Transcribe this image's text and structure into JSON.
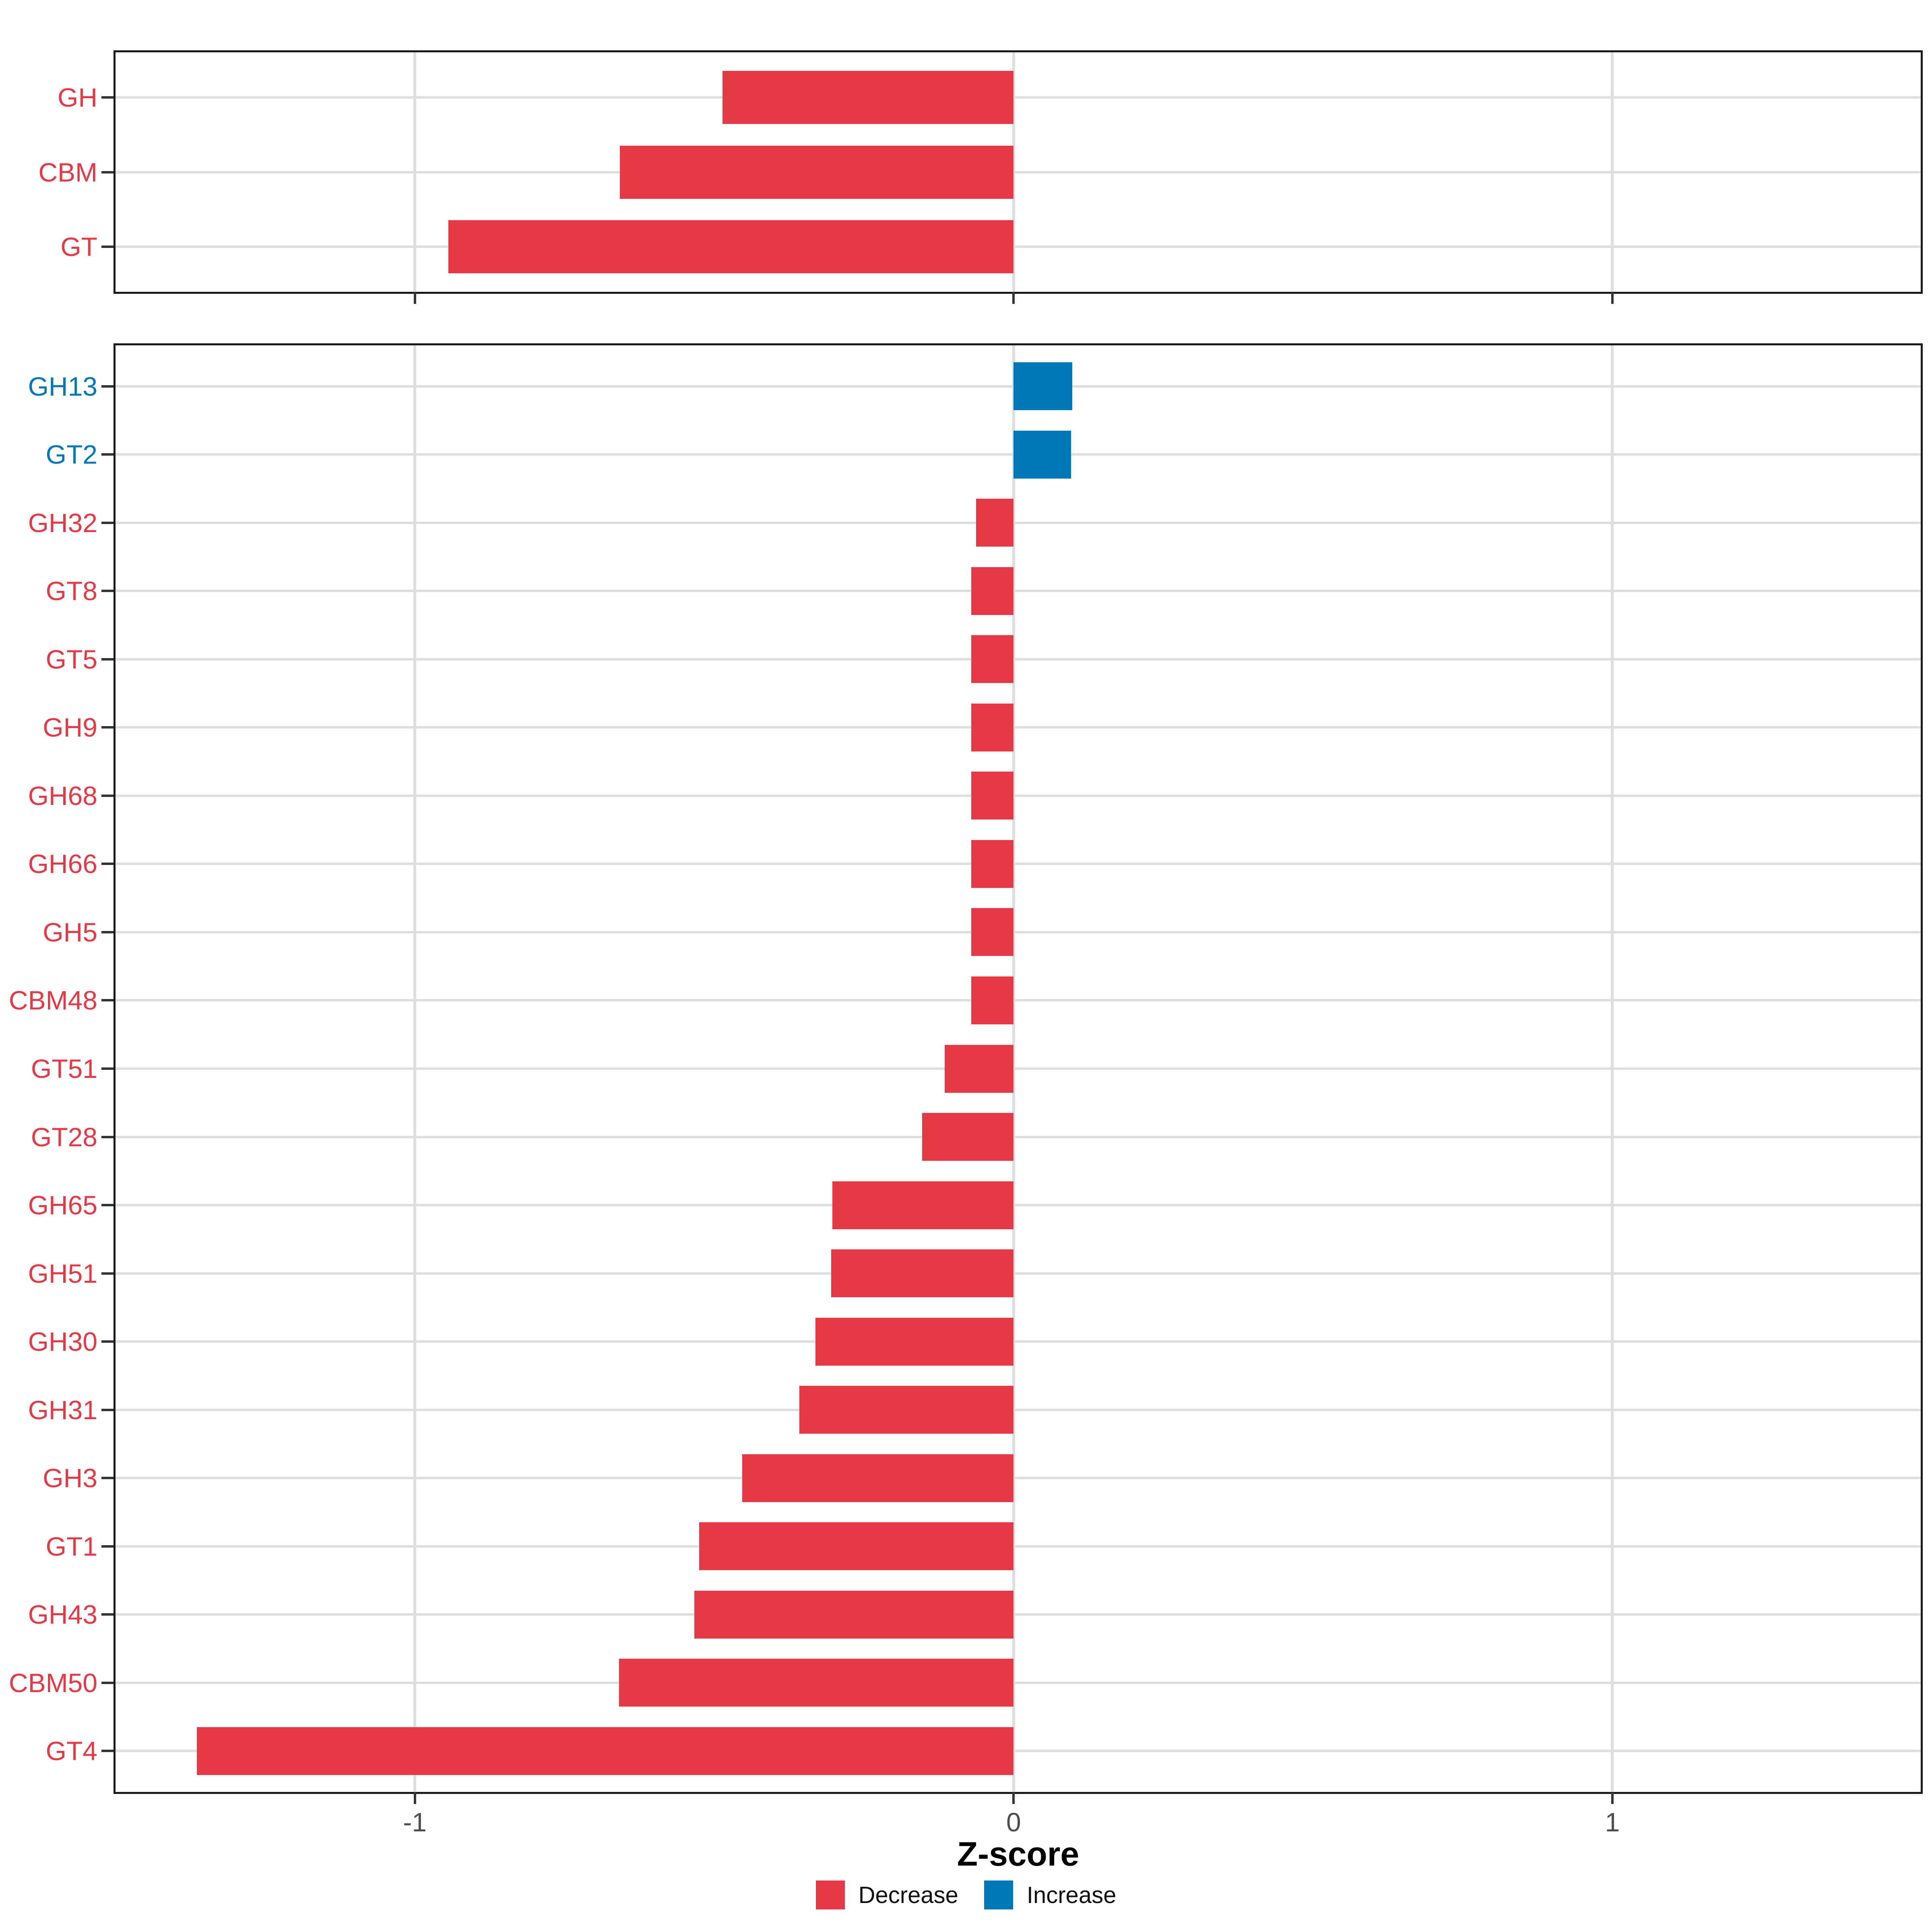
{
  "figure": {
    "xlabel": "Z-score",
    "background_color": "#FFFFFF",
    "axis": {
      "min": -1.5,
      "max": 1.515,
      "ticks": [
        -1,
        0,
        1
      ],
      "tick_labels": [
        "-1",
        "0",
        "1"
      ]
    },
    "colors": {
      "decrease": "#E63946",
      "increase": "#0077B6",
      "grid": "#DEDEDE",
      "panel_border": "#1A1A1A",
      "tick_mark": "#333333",
      "axis_text": "#4D4D4D"
    },
    "legend": [
      {
        "label": "Decrease",
        "color": "#E63946"
      },
      {
        "label": "Increase",
        "color": "#0077B6"
      }
    ]
  },
  "chart_data": [
    {
      "type": "bar",
      "orientation": "horizontal",
      "panel": "top",
      "title": "",
      "xlabel": "Z-score",
      "xlim": [
        -1.5,
        1.515
      ],
      "grid": "major-only",
      "categories": [
        "GH",
        "CBM",
        "GT"
      ],
      "values": [
        -0.486,
        -0.658,
        -0.944
      ],
      "directions": [
        "Decrease",
        "Decrease",
        "Decrease"
      ]
    },
    {
      "type": "bar",
      "orientation": "horizontal",
      "panel": "bottom",
      "title": "",
      "xlabel": "Z-score",
      "xlim": [
        -1.5,
        1.515
      ],
      "grid": "major-only",
      "categories": [
        "GH13",
        "GT2",
        "GH32",
        "GT8",
        "GT5",
        "GH9",
        "GH68",
        "GH66",
        "GH5",
        "CBM48",
        "GT51",
        "GT28",
        "GH65",
        "GH51",
        "GH30",
        "GH31",
        "GH3",
        "GT1",
        "GH43",
        "CBM50",
        "GT4"
      ],
      "values": [
        0.098,
        0.096,
        -0.063,
        -0.071,
        -0.071,
        -0.071,
        -0.071,
        -0.071,
        -0.071,
        -0.071,
        -0.115,
        -0.153,
        -0.303,
        -0.305,
        -0.331,
        -0.358,
        -0.453,
        -0.525,
        -0.533,
        -0.659,
        -1.364
      ],
      "directions": [
        "Increase",
        "Increase",
        "Decrease",
        "Decrease",
        "Decrease",
        "Decrease",
        "Decrease",
        "Decrease",
        "Decrease",
        "Decrease",
        "Decrease",
        "Decrease",
        "Decrease",
        "Decrease",
        "Decrease",
        "Decrease",
        "Decrease",
        "Decrease",
        "Decrease",
        "Decrease",
        "Decrease"
      ]
    }
  ]
}
